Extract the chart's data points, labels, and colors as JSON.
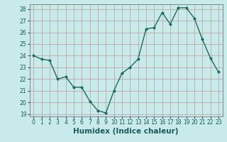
{
  "x": [
    0,
    1,
    2,
    3,
    4,
    5,
    6,
    7,
    8,
    9,
    10,
    11,
    12,
    13,
    14,
    15,
    16,
    17,
    18,
    19,
    20,
    21,
    22,
    23
  ],
  "y": [
    24.0,
    23.7,
    23.6,
    22.0,
    22.2,
    21.3,
    21.3,
    20.1,
    19.3,
    19.1,
    21.0,
    22.5,
    23.0,
    23.7,
    26.3,
    26.4,
    27.7,
    26.7,
    28.1,
    28.1,
    27.2,
    25.4,
    23.8,
    22.6
  ],
  "xlabel": "Humidex (Indice chaleur)",
  "ylim_min": 18.8,
  "ylim_max": 28.4,
  "yticks": [
    19,
    20,
    21,
    22,
    23,
    24,
    25,
    26,
    27,
    28
  ],
  "xticks": [
    0,
    1,
    2,
    3,
    4,
    5,
    6,
    7,
    8,
    9,
    10,
    11,
    12,
    13,
    14,
    15,
    16,
    17,
    18,
    19,
    20,
    21,
    22,
    23
  ],
  "line_color": "#1a6b5a",
  "marker_color": "#1a6b5a",
  "bg_color": "#c8eaea",
  "grid_color": "#c0a8a8",
  "xlabel_fontsize": 7.5,
  "tick_fontsize": 5.5
}
